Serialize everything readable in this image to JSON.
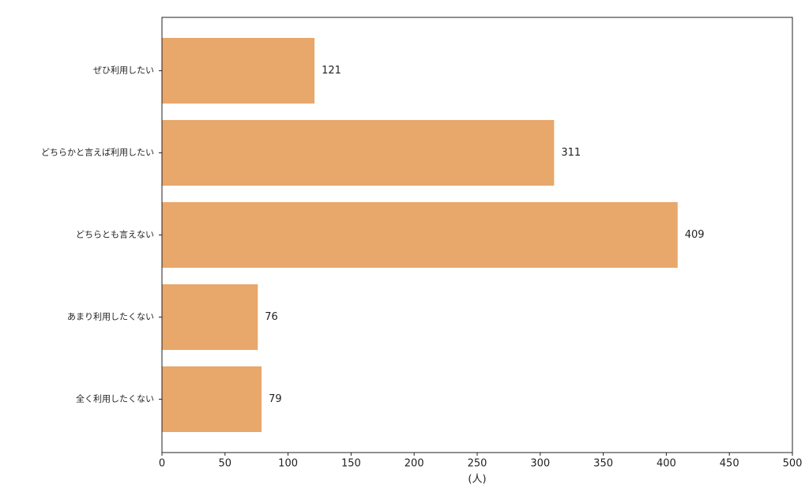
{
  "chart_data": {
    "type": "barh",
    "categories": [
      "ぜひ利用したい",
      "どちらかと言えば利用したい",
      "どちらとも言えない",
      "あまり利用したくない",
      "全く利用したくない"
    ],
    "values": [
      121,
      311,
      409,
      76,
      79
    ],
    "color": "#e8a76b",
    "xlabel": "(人)",
    "xlim": [
      0,
      500
    ],
    "xticks": [
      0,
      50,
      100,
      150,
      200,
      250,
      300,
      350,
      400,
      450,
      500
    ]
  }
}
